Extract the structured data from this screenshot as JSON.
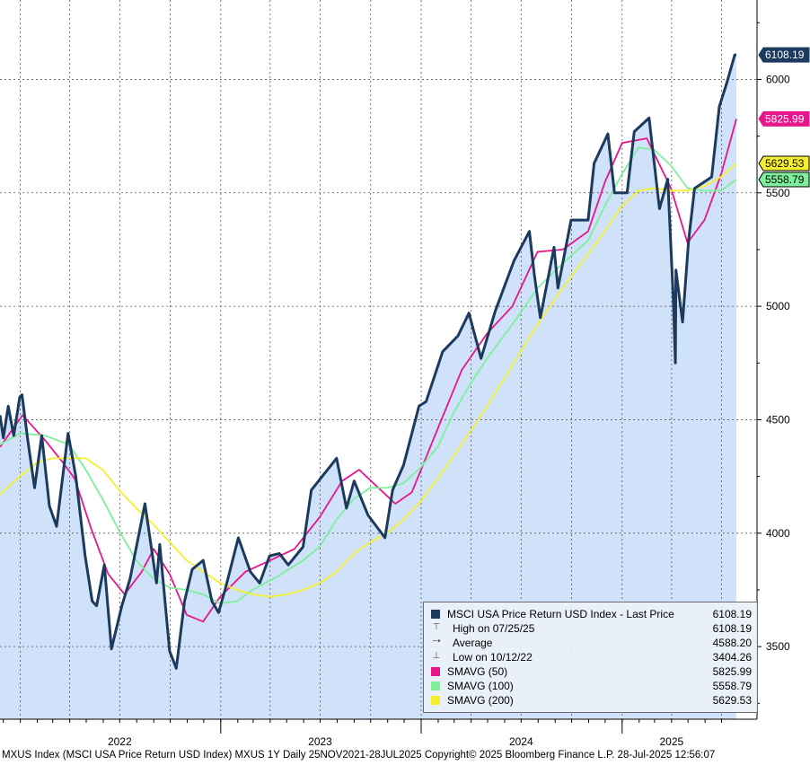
{
  "chart_data": {
    "type": "line",
    "title": "",
    "xlabel": "",
    "ylabel": "",
    "ylim": [
      3180,
      6350
    ],
    "x_range": [
      "2021-11-25",
      "2025-07-28"
    ],
    "y_ticks": [
      3500,
      4000,
      4500,
      5000,
      5500,
      6000
    ],
    "x_tick_labels": [
      {
        "label": "2022",
        "date": "2022-07-01"
      },
      {
        "label": "2023",
        "date": "2023-07-01"
      },
      {
        "label": "2024",
        "date": "2024-07-01"
      },
      {
        "label": "2025",
        "date": "2025-04-01"
      }
    ],
    "grid": true,
    "area_fill_color": "#cfe2f9",
    "series": [
      {
        "name": "MSCI USA Price Return USD Index - Last Price",
        "color": "#1b3a5e",
        "points": [
          [
            "2021-11-25",
            4520
          ],
          [
            "2021-12-01",
            4420
          ],
          [
            "2021-12-10",
            4560
          ],
          [
            "2021-12-20",
            4430
          ],
          [
            "2021-12-31",
            4600
          ],
          [
            "2022-01-04",
            4610
          ],
          [
            "2022-01-14",
            4420
          ],
          [
            "2022-01-27",
            4200
          ],
          [
            "2022-02-09",
            4430
          ],
          [
            "2022-02-23",
            4120
          ],
          [
            "2022-03-08",
            4030
          ],
          [
            "2022-03-29",
            4440
          ],
          [
            "2022-04-12",
            4250
          ],
          [
            "2022-04-29",
            3900
          ],
          [
            "2022-05-12",
            3700
          ],
          [
            "2022-05-20",
            3680
          ],
          [
            "2022-06-03",
            3860
          ],
          [
            "2022-06-16",
            3490
          ],
          [
            "2022-07-05",
            3680
          ],
          [
            "2022-07-20",
            3800
          ],
          [
            "2022-08-16",
            4130
          ],
          [
            "2022-09-06",
            3780
          ],
          [
            "2022-09-12",
            3950
          ],
          [
            "2022-09-30",
            3480
          ],
          [
            "2022-10-12",
            3404.26
          ],
          [
            "2022-10-27",
            3700
          ],
          [
            "2022-11-10",
            3840
          ],
          [
            "2022-11-30",
            3880
          ],
          [
            "2022-12-16",
            3700
          ],
          [
            "2022-12-28",
            3650
          ],
          [
            "2023-01-10",
            3760
          ],
          [
            "2023-02-02",
            3980
          ],
          [
            "2023-02-24",
            3830
          ],
          [
            "2023-03-13",
            3780
          ],
          [
            "2023-03-31",
            3900
          ],
          [
            "2023-04-18",
            3910
          ],
          [
            "2023-05-04",
            3860
          ],
          [
            "2023-05-31",
            3940
          ],
          [
            "2023-06-15",
            4190
          ],
          [
            "2023-07-31",
            4330
          ],
          [
            "2023-08-18",
            4110
          ],
          [
            "2023-09-01",
            4230
          ],
          [
            "2023-09-26",
            4080
          ],
          [
            "2023-10-27",
            3980
          ],
          [
            "2023-11-10",
            4190
          ],
          [
            "2023-11-30",
            4300
          ],
          [
            "2023-12-28",
            4560
          ],
          [
            "2024-01-10",
            4580
          ],
          [
            "2024-02-09",
            4800
          ],
          [
            "2024-03-08",
            4870
          ],
          [
            "2024-03-28",
            4970
          ],
          [
            "2024-04-19",
            4770
          ],
          [
            "2024-05-15",
            4980
          ],
          [
            "2024-06-18",
            5200
          ],
          [
            "2024-07-16",
            5330
          ],
          [
            "2024-07-25",
            5140
          ],
          [
            "2024-08-05",
            4950
          ],
          [
            "2024-08-30",
            5260
          ],
          [
            "2024-09-06",
            5080
          ],
          [
            "2024-09-30",
            5380
          ],
          [
            "2024-10-31",
            5380
          ],
          [
            "2024-11-11",
            5630
          ],
          [
            "2024-12-06",
            5760
          ],
          [
            "2024-12-18",
            5500
          ],
          [
            "2025-01-10",
            5500
          ],
          [
            "2025-01-23",
            5770
          ],
          [
            "2025-02-19",
            5830
          ],
          [
            "2025-03-10",
            5430
          ],
          [
            "2025-03-25",
            5560
          ],
          [
            "2025-04-04",
            5040
          ],
          [
            "2025-04-08",
            4750
          ],
          [
            "2025-04-09",
            5160
          ],
          [
            "2025-04-21",
            4930
          ],
          [
            "2025-05-02",
            5290
          ],
          [
            "2025-05-13",
            5520
          ],
          [
            "2025-06-13",
            5570
          ],
          [
            "2025-06-27",
            5880
          ],
          [
            "2025-07-10",
            5980
          ],
          [
            "2025-07-25",
            6108.19
          ],
          [
            "2025-07-28",
            6108.19
          ]
        ]
      },
      {
        "name": "SMAVG (50)",
        "color": "#e8168b",
        "points": [
          [
            "2021-11-25",
            4380
          ],
          [
            "2022-01-05",
            4520
          ],
          [
            "2022-02-15",
            4410
          ],
          [
            "2022-03-20",
            4310
          ],
          [
            "2022-04-10",
            4240
          ],
          [
            "2022-05-10",
            4020
          ],
          [
            "2022-06-10",
            3820
          ],
          [
            "2022-07-10",
            3730
          ],
          [
            "2022-08-10",
            3830
          ],
          [
            "2022-09-01",
            3930
          ],
          [
            "2022-09-30",
            3820
          ],
          [
            "2022-10-31",
            3640
          ],
          [
            "2022-11-30",
            3610
          ],
          [
            "2022-12-31",
            3720
          ],
          [
            "2023-02-15",
            3830
          ],
          [
            "2023-04-01",
            3880
          ],
          [
            "2023-05-15",
            3930
          ],
          [
            "2023-06-30",
            4070
          ],
          [
            "2023-08-10",
            4230
          ],
          [
            "2023-09-10",
            4280
          ],
          [
            "2023-10-15",
            4200
          ],
          [
            "2023-11-15",
            4130
          ],
          [
            "2023-12-15",
            4180
          ],
          [
            "2024-01-31",
            4460
          ],
          [
            "2024-03-15",
            4720
          ],
          [
            "2024-04-30",
            4880
          ],
          [
            "2024-06-15",
            5000
          ],
          [
            "2024-07-31",
            5240
          ],
          [
            "2024-09-15",
            5250
          ],
          [
            "2024-10-31",
            5330
          ],
          [
            "2024-12-01",
            5550
          ],
          [
            "2025-01-01",
            5720
          ],
          [
            "2025-02-15",
            5740
          ],
          [
            "2025-03-31",
            5520
          ],
          [
            "2025-04-30",
            5280
          ],
          [
            "2025-05-31",
            5380
          ],
          [
            "2025-06-30",
            5580
          ],
          [
            "2025-07-28",
            5825.99
          ]
        ]
      },
      {
        "name": "SMAVG (100)",
        "color": "#7df09c",
        "points": [
          [
            "2021-11-25",
            4390
          ],
          [
            "2021-12-31",
            4440
          ],
          [
            "2022-02-15",
            4430
          ],
          [
            "2022-03-31",
            4390
          ],
          [
            "2022-04-30",
            4280
          ],
          [
            "2022-05-31",
            4150
          ],
          [
            "2022-06-30",
            4010
          ],
          [
            "2022-07-31",
            3880
          ],
          [
            "2022-08-31",
            3800
          ],
          [
            "2022-09-30",
            3760
          ],
          [
            "2022-10-31",
            3750
          ],
          [
            "2022-11-30",
            3730
          ],
          [
            "2022-12-31",
            3690
          ],
          [
            "2023-01-31",
            3700
          ],
          [
            "2023-02-28",
            3750
          ],
          [
            "2023-04-15",
            3810
          ],
          [
            "2023-05-31",
            3880
          ],
          [
            "2023-06-30",
            3940
          ],
          [
            "2023-07-31",
            4060
          ],
          [
            "2023-08-31",
            4150
          ],
          [
            "2023-09-30",
            4200
          ],
          [
            "2023-10-31",
            4200
          ],
          [
            "2023-11-30",
            4220
          ],
          [
            "2023-12-31",
            4290
          ],
          [
            "2024-01-31",
            4380
          ],
          [
            "2024-02-29",
            4530
          ],
          [
            "2024-03-31",
            4660
          ],
          [
            "2024-04-30",
            4770
          ],
          [
            "2024-06-15",
            4920
          ],
          [
            "2024-07-31",
            5080
          ],
          [
            "2024-09-15",
            5190
          ],
          [
            "2024-10-31",
            5290
          ],
          [
            "2024-11-30",
            5440
          ],
          [
            "2024-12-31",
            5580
          ],
          [
            "2025-01-31",
            5700
          ],
          [
            "2025-02-28",
            5690
          ],
          [
            "2025-03-31",
            5620
          ],
          [
            "2025-04-30",
            5520
          ],
          [
            "2025-05-31",
            5510
          ],
          [
            "2025-06-30",
            5510
          ],
          [
            "2025-07-28",
            5558.79
          ]
        ]
      },
      {
        "name": "SMAVG (200)",
        "color": "#f5ef2f",
        "points": [
          [
            "2021-11-25",
            4170
          ],
          [
            "2021-12-31",
            4250
          ],
          [
            "2022-01-31",
            4310
          ],
          [
            "2022-02-28",
            4330
          ],
          [
            "2022-03-31",
            4330
          ],
          [
            "2022-04-30",
            4330
          ],
          [
            "2022-05-31",
            4280
          ],
          [
            "2022-06-30",
            4190
          ],
          [
            "2022-07-31",
            4110
          ],
          [
            "2022-08-31",
            4040
          ],
          [
            "2022-09-30",
            3960
          ],
          [
            "2022-10-31",
            3880
          ],
          [
            "2022-11-30",
            3830
          ],
          [
            "2022-12-31",
            3780
          ],
          [
            "2023-01-31",
            3750
          ],
          [
            "2023-02-28",
            3730
          ],
          [
            "2023-03-31",
            3720
          ],
          [
            "2023-04-30",
            3730
          ],
          [
            "2023-05-31",
            3750
          ],
          [
            "2023-06-30",
            3780
          ],
          [
            "2023-07-31",
            3830
          ],
          [
            "2023-08-31",
            3910
          ],
          [
            "2023-09-30",
            3960
          ],
          [
            "2023-10-31",
            4000
          ],
          [
            "2023-11-30",
            4060
          ],
          [
            "2023-12-31",
            4140
          ],
          [
            "2024-01-31",
            4240
          ],
          [
            "2024-02-29",
            4340
          ],
          [
            "2024-03-31",
            4450
          ],
          [
            "2024-04-30",
            4560
          ],
          [
            "2024-05-31",
            4680
          ],
          [
            "2024-06-30",
            4800
          ],
          [
            "2024-07-31",
            4920
          ],
          [
            "2024-08-31",
            5030
          ],
          [
            "2024-09-30",
            5130
          ],
          [
            "2024-10-31",
            5230
          ],
          [
            "2024-11-30",
            5330
          ],
          [
            "2024-12-31",
            5440
          ],
          [
            "2025-01-31",
            5510
          ],
          [
            "2025-02-28",
            5520
          ],
          [
            "2025-03-31",
            5510
          ],
          [
            "2025-04-30",
            5510
          ],
          [
            "2025-05-31",
            5530
          ],
          [
            "2025-06-30",
            5570
          ],
          [
            "2025-07-28",
            5629.53
          ]
        ]
      }
    ],
    "last_value_badges": [
      {
        "value": 6108.19,
        "text": "6108.19",
        "bg": "#1b3a5e",
        "fg": "#ffffff",
        "border": "#1b3a5e"
      },
      {
        "value": 5825.99,
        "text": "5825.99",
        "bg": "#e8168b",
        "fg": "#ffffff",
        "border": "#e8168b"
      },
      {
        "value": 5629.53,
        "text": "5629.53",
        "bg": "#f5ef2f",
        "fg": "#000000",
        "border": "#000000"
      },
      {
        "value": 5558.79,
        "text": "5558.79",
        "bg": "#7df09c",
        "fg": "#000000",
        "border": "#000000"
      }
    ],
    "legend": {
      "placement": "bottom-right",
      "rows": [
        {
          "icon": "series-square-icon",
          "color": "#1b3a5e",
          "label": "MSCI USA Price Return USD Index - Last Price",
          "value": "6108.19"
        },
        {
          "icon": "high-marker-icon",
          "label": "High on 07/25/25",
          "value": "6108.19"
        },
        {
          "icon": "average-marker-icon",
          "label": "Average",
          "value": "4588.20"
        },
        {
          "icon": "low-marker-icon",
          "label": "Low on 10/12/22",
          "value": "3404.26"
        },
        {
          "icon": "series-square-icon",
          "color": "#e8168b",
          "label": "SMAVG (50)",
          "value": "5825.99"
        },
        {
          "icon": "series-square-icon",
          "color": "#7df09c",
          "label": "SMAVG (100)",
          "value": "5558.79"
        },
        {
          "icon": "series-square-icon",
          "color": "#f5ef2f",
          "label": "SMAVG (200)",
          "value": "5629.53"
        }
      ]
    }
  },
  "footer": "MXUS Index (MSCI USA Price Return USD Index) MXUS 1Y  Daily 25NOV2021-28JUL2025 Copyright© 2025 Bloomberg Finance L.P. 28-Jul-2025 12:56:07"
}
